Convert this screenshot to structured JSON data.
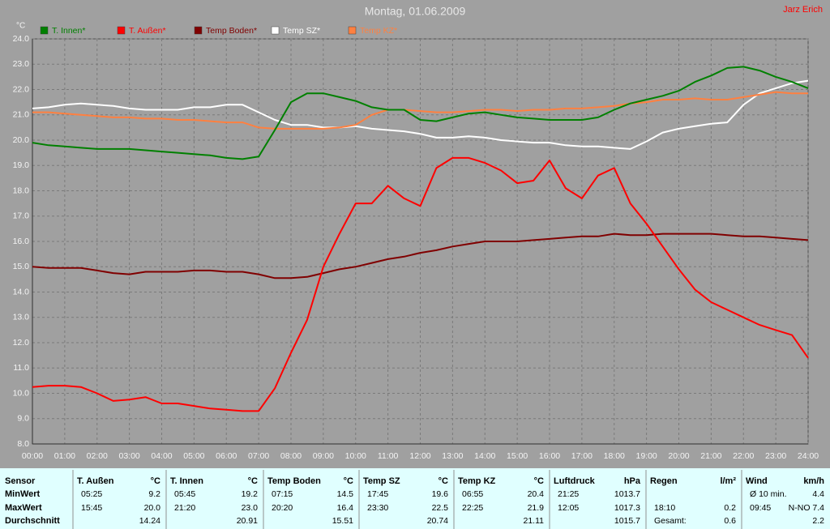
{
  "chart_data": {
    "type": "line",
    "title": "Montag, 01.06.2009",
    "author": "Jarz Erich",
    "y_label": "°C",
    "x": [
      0,
      0.5,
      1,
      1.5,
      2,
      2.5,
      3,
      3.5,
      4,
      4.5,
      5,
      5.5,
      6,
      6.5,
      7,
      7.5,
      8,
      8.5,
      9,
      9.5,
      10,
      10.5,
      11,
      11.5,
      12,
      12.5,
      13,
      13.5,
      14,
      14.5,
      15,
      15.5,
      16,
      16.5,
      17,
      17.5,
      18,
      18.5,
      19,
      19.5,
      20,
      20.5,
      21,
      21.5,
      22,
      22.5,
      23,
      23.5,
      24
    ],
    "series": [
      {
        "name": "T. Innen*",
        "color": "#008000",
        "values": [
          19.9,
          19.8,
          19.75,
          19.7,
          19.65,
          19.65,
          19.65,
          19.6,
          19.55,
          19.5,
          19.45,
          19.4,
          19.3,
          19.25,
          19.35,
          20.4,
          21.5,
          21.85,
          21.85,
          21.7,
          21.55,
          21.3,
          21.2,
          21.2,
          20.8,
          20.75,
          20.9,
          21.05,
          21.1,
          21.0,
          20.9,
          20.85,
          20.8,
          20.8,
          20.8,
          20.9,
          21.2,
          21.45,
          21.6,
          21.75,
          21.95,
          22.3,
          22.55,
          22.85,
          22.9,
          22.75,
          22.5,
          22.3,
          22.05
        ]
      },
      {
        "name": "T. Außen*",
        "color": "#ff0000",
        "values": [
          10.25,
          10.3,
          10.3,
          10.25,
          10.0,
          9.7,
          9.75,
          9.85,
          9.6,
          9.6,
          9.5,
          9.4,
          9.35,
          9.3,
          9.3,
          10.2,
          11.6,
          12.9,
          15.0,
          16.3,
          17.5,
          17.5,
          18.2,
          17.7,
          17.4,
          18.9,
          19.3,
          19.3,
          19.1,
          18.8,
          18.3,
          18.4,
          19.2,
          18.1,
          17.7,
          18.6,
          18.9,
          17.5,
          16.7,
          15.8,
          14.9,
          14.1,
          13.6,
          13.3,
          13.0,
          12.7,
          12.5,
          12.3,
          11.4
        ]
      },
      {
        "name": "Temp Boden*",
        "color": "#800000",
        "values": [
          15.0,
          14.95,
          14.95,
          14.95,
          14.85,
          14.75,
          14.7,
          14.8,
          14.8,
          14.8,
          14.85,
          14.85,
          14.8,
          14.8,
          14.7,
          14.55,
          14.55,
          14.6,
          14.75,
          14.9,
          15.0,
          15.15,
          15.3,
          15.4,
          15.55,
          15.65,
          15.8,
          15.9,
          16.0,
          16.0,
          16.0,
          16.05,
          16.1,
          16.15,
          16.2,
          16.2,
          16.3,
          16.25,
          16.25,
          16.3,
          16.3,
          16.3,
          16.3,
          16.25,
          16.2,
          16.2,
          16.15,
          16.1,
          16.05
        ]
      },
      {
        "name": "Temp SZ*",
        "color": "#ffffff",
        "values": [
          21.25,
          21.3,
          21.4,
          21.45,
          21.4,
          21.35,
          21.25,
          21.2,
          21.2,
          21.2,
          21.3,
          21.3,
          21.4,
          21.4,
          21.1,
          20.8,
          20.6,
          20.6,
          20.5,
          20.5,
          20.55,
          20.45,
          20.4,
          20.35,
          20.25,
          20.1,
          20.1,
          20.15,
          20.1,
          20.0,
          19.95,
          19.9,
          19.9,
          19.8,
          19.75,
          19.75,
          19.7,
          19.65,
          19.95,
          20.3,
          20.45,
          20.55,
          20.65,
          20.7,
          21.4,
          21.85,
          22.05,
          22.25,
          22.35
        ]
      },
      {
        "name": "Temp KZ*",
        "color": "#ff8040",
        "values": [
          21.1,
          21.1,
          21.05,
          21.0,
          20.95,
          20.9,
          20.9,
          20.85,
          20.85,
          20.8,
          20.8,
          20.75,
          20.7,
          20.7,
          20.5,
          20.45,
          20.45,
          20.45,
          20.45,
          20.5,
          20.6,
          21.0,
          21.2,
          21.2,
          21.15,
          21.1,
          21.1,
          21.15,
          21.2,
          21.2,
          21.15,
          21.2,
          21.2,
          21.25,
          21.25,
          21.3,
          21.35,
          21.45,
          21.5,
          21.6,
          21.6,
          21.65,
          21.6,
          21.6,
          21.7,
          21.8,
          21.9,
          21.85,
          21.85
        ]
      }
    ],
    "xlim": [
      0,
      24
    ],
    "xticks": [
      {
        "value": 0,
        "label": "00:00"
      },
      {
        "value": 1,
        "label": "01:00"
      },
      {
        "value": 2,
        "label": "02:00"
      },
      {
        "value": 3,
        "label": "03:00"
      },
      {
        "value": 4,
        "label": "04:00"
      },
      {
        "value": 5,
        "label": "05:00"
      },
      {
        "value": 6,
        "label": "06:00"
      },
      {
        "value": 7,
        "label": "07:00"
      },
      {
        "value": 8,
        "label": "08:00"
      },
      {
        "value": 9,
        "label": "09:00"
      },
      {
        "value": 10,
        "label": "10:00"
      },
      {
        "value": 11,
        "label": "11:00"
      },
      {
        "value": 12,
        "label": "12:00"
      },
      {
        "value": 13,
        "label": "13:00"
      },
      {
        "value": 14,
        "label": "14:00"
      },
      {
        "value": 15,
        "label": "15:00"
      },
      {
        "value": 16,
        "label": "16:00"
      },
      {
        "value": 17,
        "label": "17:00"
      },
      {
        "value": 18,
        "label": "18:00"
      },
      {
        "value": 19,
        "label": "19:00"
      },
      {
        "value": 20,
        "label": "20:00"
      },
      {
        "value": 21,
        "label": "21:00"
      },
      {
        "value": 22,
        "label": "22:00"
      },
      {
        "value": 23,
        "label": "23:00"
      },
      {
        "value": 24,
        "label": "24:00"
      }
    ],
    "ylim": [
      8,
      24
    ],
    "yticks": [
      {
        "value": 8,
        "label": "8.0"
      },
      {
        "value": 9,
        "label": "9.0"
      },
      {
        "value": 10,
        "label": "10.0"
      },
      {
        "value": 11,
        "label": "11.0"
      },
      {
        "value": 12,
        "label": "12.0"
      },
      {
        "value": 13,
        "label": "13.0"
      },
      {
        "value": 14,
        "label": "14.0"
      },
      {
        "value": 15,
        "label": "15.0"
      },
      {
        "value": 16,
        "label": "16.0"
      },
      {
        "value": 17,
        "label": "17.0"
      },
      {
        "value": 18,
        "label": "18.0"
      },
      {
        "value": 19,
        "label": "19.0"
      },
      {
        "value": 20,
        "label": "20.0"
      },
      {
        "value": 21,
        "label": "21.0"
      },
      {
        "value": 22,
        "label": "22.0"
      },
      {
        "value": 23,
        "label": "23.0"
      },
      {
        "value": 24,
        "label": "24.0"
      }
    ],
    "grid": true
  },
  "table": {
    "row_header": "Sensor",
    "row_labels": [
      "MinWert",
      "MaxWert",
      "Durchschnitt"
    ],
    "columns": [
      {
        "name": "T. Außen",
        "unit": "°C",
        "rows": [
          {
            "left": "05:25",
            "right": "9.2"
          },
          {
            "left": "15:45",
            "right": "20.0"
          },
          {
            "right": "14.24"
          }
        ]
      },
      {
        "name": "T. Innen",
        "unit": "°C",
        "rows": [
          {
            "left": "05:45",
            "right": "19.2"
          },
          {
            "left": "21:20",
            "right": "23.0"
          },
          {
            "right": "20.91"
          }
        ]
      },
      {
        "name": "Temp Boden",
        "unit": "°C",
        "rows": [
          {
            "left": "07:15",
            "right": "14.5"
          },
          {
            "left": "20:20",
            "right": "16.4"
          },
          {
            "right": "15.51"
          }
        ]
      },
      {
        "name": "Temp SZ",
        "unit": "°C",
        "rows": [
          {
            "left": "17:45",
            "right": "19.6"
          },
          {
            "left": "23:30",
            "right": "22.5"
          },
          {
            "right": "20.74"
          }
        ]
      },
      {
        "name": "Temp KZ",
        "unit": "°C",
        "rows": [
          {
            "left": "06:55",
            "right": "20.4"
          },
          {
            "left": "22:25",
            "right": "21.9"
          },
          {
            "right": "21.11"
          }
        ]
      },
      {
        "name": "Luftdruck",
        "unit": "hPa",
        "rows": [
          {
            "left": "21:25",
            "right": "1013.7"
          },
          {
            "left": "12:05",
            "right": "1017.3"
          },
          {
            "right": "1015.7"
          }
        ]
      },
      {
        "name": "Regen",
        "unit": "l/m²",
        "rows": [
          null,
          {
            "left": "18:10",
            "right": "0.2"
          },
          {
            "left": "Gesamt:",
            "right": "0.6"
          }
        ]
      },
      {
        "name": "Wind",
        "unit": "km/h",
        "rows": [
          {
            "left": "Ø 10 min.",
            "right": "4.4"
          },
          {
            "left": "09:45",
            "right": "N-NO 7.4"
          },
          {
            "right": "2.2"
          }
        ]
      }
    ]
  }
}
